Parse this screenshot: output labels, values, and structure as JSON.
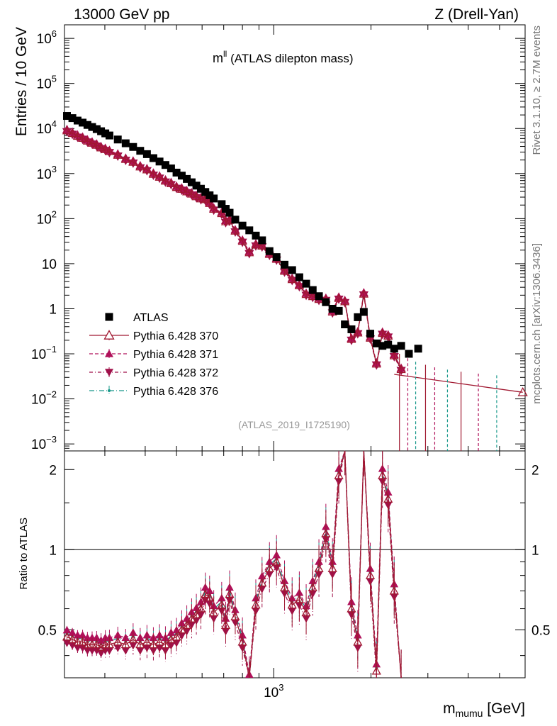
{
  "header": {
    "left": "13000 GeV pp",
    "right": "Z (Drell-Yan)"
  },
  "side": {
    "rivet": "Rivet 3.1.10, ≥ 2.7M events",
    "mcplots": "mcplots.cern.ch [arXiv:1306.3436]"
  },
  "plot": {
    "title_main": "m",
    "title_sup": "ll",
    "title_rest": " (ATLAS dilepton mass)",
    "analysis_id": "(ATLAS_2019_I1725190)",
    "ylabel": "Entries / 10 GeV",
    "ratio_ylabel": "Ratio to ATLAS",
    "xlabel_main": "m",
    "xlabel_sub": "mumu",
    "xlabel_unit": " [GeV]"
  },
  "colors": {
    "atlas": "#000000",
    "p370": "#a01830",
    "p371": "#b0105a",
    "p372": "#a0104a",
    "p376": "#18988a"
  },
  "chart_data": {
    "type": "scatter",
    "x_scale": "log",
    "y_scale": "log",
    "xlim": [
      225,
      6000
    ],
    "ylim": [
      0.0007,
      2000000
    ],
    "y_ticks": [
      {
        "value": 1000000,
        "base": "10",
        "exp": "6"
      },
      {
        "value": 100000,
        "base": "10",
        "exp": "5"
      },
      {
        "value": 10000,
        "base": "10",
        "exp": "4"
      },
      {
        "value": 1000,
        "base": "10",
        "exp": "3"
      },
      {
        "value": 100,
        "base": "10",
        "exp": "2"
      },
      {
        "value": 10,
        "base": "10",
        "exp": ""
      },
      {
        "value": 1,
        "base": "1",
        "exp": ""
      },
      {
        "value": 0.1,
        "base": "10",
        "exp": "−1"
      },
      {
        "value": 0.01,
        "base": "10",
        "exp": "−2"
      },
      {
        "value": 0.001,
        "base": "10",
        "exp": "−3"
      }
    ],
    "x_ticks": [
      {
        "value": 1000,
        "base": "10",
        "exp": "3"
      }
    ],
    "ratio_ylim": [
      0.33,
      2.35
    ],
    "ratio_ticks": [
      {
        "value": 0.5,
        "label": "0.5"
      },
      {
        "value": 1,
        "label": "1"
      },
      {
        "value": 2,
        "label": "2"
      }
    ],
    "legend_position": "bottom-left",
    "series": [
      {
        "name": "ATLAS",
        "marker": "square",
        "x": [
          229,
          238,
          247,
          256,
          265,
          274,
          283,
          292,
          301,
          310,
          329,
          348,
          367,
          386,
          405,
          424,
          443,
          462,
          481,
          500,
          519,
          538,
          557,
          576,
          595,
          614,
          633,
          652,
          690,
          710,
          730,
          760,
          800,
          840,
          880,
          920,
          970,
          1020,
          1080,
          1140,
          1200,
          1260,
          1320,
          1380,
          1450,
          1520,
          1590,
          1660,
          1740,
          1820,
          1900,
          1990,
          2080,
          2170,
          2260,
          2360,
          2480,
          2620,
          2800
        ],
        "y": [
          19000,
          17000,
          15000,
          13500,
          12000,
          10800,
          9700,
          8700,
          7800,
          7000,
          5700,
          4700,
          3900,
          3200,
          2700,
          2200,
          1850,
          1550,
          1300,
          1050,
          900,
          760,
          640,
          540,
          460,
          390,
          330,
          280,
          210,
          165,
          135,
          95,
          70,
          55,
          42,
          33,
          19,
          14,
          9.5,
          7.2,
          5.0,
          3.6,
          2.6,
          1.9,
          1.4,
          1.0,
          0.9,
          0.45,
          0.35,
          0.65,
          0.85,
          0.28,
          0.17,
          0.15,
          0.16,
          0.13,
          0.15,
          0.1,
          0.13
        ]
      },
      {
        "name": "Pythia 6.428 370",
        "marker": "triangle-open",
        "ratio_x": [
          229,
          238,
          247,
          256,
          265,
          274,
          283,
          292,
          301,
          310,
          329,
          348,
          367,
          386,
          405,
          424,
          443,
          462,
          481,
          500,
          519,
          538,
          557,
          576,
          595,
          614,
          633,
          652,
          690,
          710,
          730,
          760,
          800,
          840,
          880,
          920,
          970,
          1020,
          1080,
          1140,
          1200,
          1260,
          1320,
          1380,
          1450,
          1520,
          1590,
          1660,
          1740,
          1820,
          1900,
          1990,
          2080,
          2170,
          2260,
          2360,
          2480
        ],
        "ratio": [
          0.47,
          0.46,
          0.45,
          0.45,
          0.44,
          0.44,
          0.44,
          0.43,
          0.44,
          0.44,
          0.45,
          0.44,
          0.46,
          0.44,
          0.45,
          0.44,
          0.45,
          0.44,
          0.46,
          0.47,
          0.5,
          0.52,
          0.55,
          0.57,
          0.6,
          0.68,
          0.66,
          0.58,
          0.62,
          0.52,
          0.68,
          0.56,
          0.45,
          0.32,
          0.62,
          0.75,
          0.85,
          0.9,
          0.72,
          0.62,
          0.65,
          0.58,
          0.72,
          0.85,
          1.15,
          0.85,
          1.9,
          3.2,
          0.6,
          0.45,
          2.5,
          0.8,
          0.35,
          1.9,
          1.55,
          0.7,
          0.3
        ],
        "x_tail": [
          2360,
          5900
        ],
        "y_tail": [
          0.035,
          0.014
        ]
      },
      {
        "name": "Pythia 6.428 371",
        "marker": "triangle-up"
      },
      {
        "name": "Pythia 6.428 372",
        "marker": "triangle-down"
      },
      {
        "name": "Pythia 6.428 376",
        "marker": "dot"
      }
    ]
  }
}
